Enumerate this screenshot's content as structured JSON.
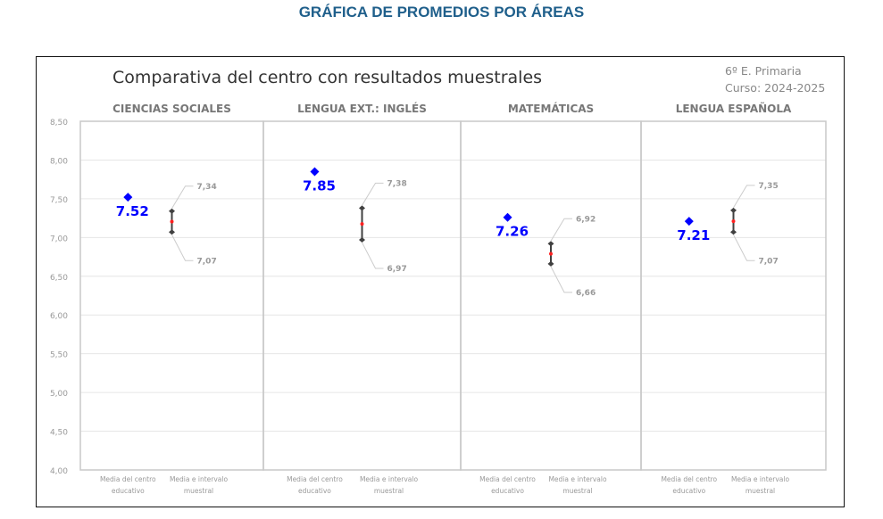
{
  "page_title": "GRÁFICA DE PROMEDIOS POR ÁREAS",
  "chart_data": {
    "type": "scatter",
    "title": "Comparativa del centro con resultados muestrales",
    "subtitle_lines": [
      "6º E. Primaria",
      "Curso: 2024-2025"
    ],
    "ylim": [
      4.0,
      8.5
    ],
    "y_ticks": [
      "8,50",
      "8,00",
      "7,50",
      "7,00",
      "6,50",
      "6,00",
      "5,50",
      "5,00",
      "4,50",
      "4,00"
    ],
    "y_tick_values": [
      8.5,
      8.0,
      7.5,
      7.0,
      6.5,
      6.0,
      5.5,
      5.0,
      4.5,
      4.0
    ],
    "grid": true,
    "x_labels": [
      "Media del centro educativo",
      "Media e intervalo muestral"
    ],
    "panels": [
      {
        "name": "CIENCIAS SOCIALES",
        "centro": 7.52,
        "centro_label": "7.52",
        "low": 7.07,
        "high": 7.34,
        "mean": 7.205,
        "low_label": "7,07",
        "high_label": "7,34"
      },
      {
        "name": "LENGUA EXT.: INGLÉS",
        "centro": 7.85,
        "centro_label": "7.85",
        "low": 6.97,
        "high": 7.38,
        "mean": 7.175,
        "low_label": "6,97",
        "high_label": "7,38"
      },
      {
        "name": "MATEMÁTICAS",
        "centro": 7.26,
        "centro_label": "7.26",
        "low": 6.66,
        "high": 6.92,
        "mean": 6.79,
        "low_label": "6,66",
        "high_label": "6,92"
      },
      {
        "name": "LENGUA ESPAÑOLA",
        "centro": 7.21,
        "centro_label": "7.21",
        "low": 7.07,
        "high": 7.35,
        "mean": 7.21,
        "low_label": "7,07",
        "high_label": "7,35"
      }
    ],
    "colors": {
      "centro": "#0000ff",
      "interval": "#404040",
      "mean": "#ff2020",
      "grid": "#e6e6e6",
      "panel_border": "#c8c8c8"
    }
  }
}
